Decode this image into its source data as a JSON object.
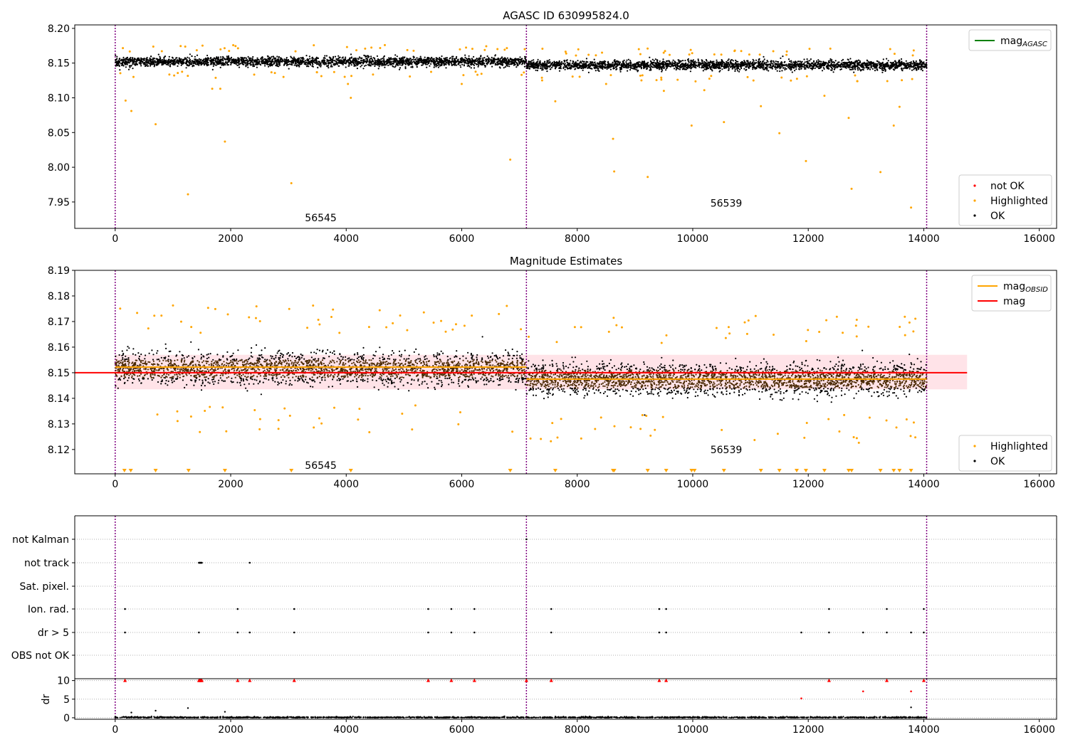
{
  "chart_data": [
    {
      "type": "scatter",
      "title": "AGASC ID 630995824.0",
      "xlim": [
        -700,
        16300
      ],
      "ylim": [
        7.912,
        8.205
      ],
      "x_ticks": [
        0,
        2000,
        4000,
        6000,
        8000,
        10000,
        12000,
        14000,
        16000
      ],
      "x_tick_labels": [
        "0",
        "2000",
        "4000",
        "6000",
        "8000",
        "10000",
        "12000",
        "14000",
        "16000"
      ],
      "y_ticks": [
        7.95,
        8.0,
        8.05,
        8.1,
        8.15,
        8.2
      ],
      "y_tick_labels": [
        "7.95",
        "8.00",
        "8.05",
        "8.10",
        "8.15",
        "8.20"
      ],
      "obsid_boundaries": [
        0,
        7120,
        14050
      ],
      "obsid_labels": [
        {
          "text": "56545",
          "x": 3560,
          "y": 7.922
        },
        {
          "text": "56539",
          "x": 10580,
          "y": 7.943
        }
      ],
      "segments": [
        {
          "x_start": 0,
          "x_end": 7120,
          "mean": 8.152,
          "spread": 0.0075
        },
        {
          "x_start": 7120,
          "x_end": 14050,
          "mean": 8.147,
          "spread": 0.0075
        }
      ],
      "highlighted_points": [
        [
          180,
          8.096
        ],
        [
          280,
          8.081
        ],
        [
          700,
          8.062
        ],
        [
          1260,
          7.961
        ],
        [
          1900,
          8.037
        ],
        [
          3050,
          7.977
        ],
        [
          4080,
          8.1
        ],
        [
          6840,
          8.011
        ],
        [
          7620,
          8.095
        ],
        [
          8620,
          8.041
        ],
        [
          8640,
          7.994
        ],
        [
          9220,
          7.986
        ],
        [
          9980,
          8.06
        ],
        [
          10540,
          8.065
        ],
        [
          11180,
          8.088
        ],
        [
          11500,
          8.049
        ],
        [
          11960,
          8.009
        ],
        [
          12280,
          8.103
        ],
        [
          12700,
          8.071
        ],
        [
          12750,
          7.969
        ],
        [
          13250,
          7.993
        ],
        [
          13480,
          8.06
        ],
        [
          13580,
          8.087
        ],
        [
          13780,
          7.942
        ],
        [
          1680,
          8.113
        ],
        [
          1820,
          8.113
        ],
        [
          4030,
          8.12
        ],
        [
          6000,
          8.12
        ],
        [
          8500,
          8.12
        ],
        [
          9500,
          8.11
        ],
        [
          10200,
          8.111
        ]
      ],
      "series": [
        {
          "name": "not OK",
          "color": "#ff0000",
          "marker": "point"
        },
        {
          "name": "Highlighted",
          "color": "#ffa500",
          "marker": "point"
        },
        {
          "name": "OK",
          "color": "#000000",
          "marker": "point"
        }
      ],
      "legends": [
        {
          "position": "upper-right",
          "entries": [
            {
              "label": "mag",
              "subscript": "AGASC",
              "color": "#008000",
              "kind": "line"
            }
          ]
        },
        {
          "position": "lower-right",
          "entries": [
            {
              "label": "not OK",
              "color": "#ff0000",
              "kind": "point"
            },
            {
              "label": "Highlighted",
              "color": "#ffa500",
              "kind": "point"
            },
            {
              "label": "OK",
              "color": "#000000",
              "kind": "point"
            }
          ]
        }
      ]
    },
    {
      "type": "scatter",
      "title": "Magnitude Estimates",
      "xlim": [
        -700,
        16300
      ],
      "ylim": [
        8.1105,
        8.19
      ],
      "x_ticks": [
        0,
        2000,
        4000,
        6000,
        8000,
        10000,
        12000,
        14000,
        16000
      ],
      "x_tick_labels": [
        "0",
        "2000",
        "4000",
        "6000",
        "8000",
        "10000",
        "12000",
        "14000",
        "16000"
      ],
      "y_ticks": [
        8.12,
        8.13,
        8.14,
        8.15,
        8.16,
        8.17,
        8.18,
        8.19
      ],
      "y_tick_labels": [
        "8.12",
        "8.13",
        "8.14",
        "8.15",
        "8.16",
        "8.17",
        "8.18",
        "8.19"
      ],
      "obsid_boundaries": [
        0,
        7120,
        14050
      ],
      "obsid_labels": [
        {
          "text": "56545",
          "x": 3560,
          "y": 8.1125
        },
        {
          "text": "56539",
          "x": 10580,
          "y": 8.1185
        }
      ],
      "mag_line": {
        "value": 8.15,
        "x_start": -700,
        "x_end": 14750,
        "color": "#ff0000"
      },
      "mag_band": {
        "low": 8.1435,
        "high": 8.157,
        "x_start": 0,
        "x_end": 14750,
        "color": "#ffc0cb"
      },
      "obsid_mag": [
        {
          "x_start": 0,
          "x_end": 7120,
          "value": 8.1522
        },
        {
          "x_start": 7120,
          "x_end": 14050,
          "value": 8.1475
        }
      ],
      "segments": [
        {
          "x_start": 0,
          "x_end": 7120,
          "mean": 8.1515,
          "spread": 0.0065
        },
        {
          "x_start": 7120,
          "x_end": 14050,
          "mean": 8.1475,
          "spread": 0.0065
        }
      ],
      "clipped_markers_x": [
        160,
        270,
        700,
        1270,
        1900,
        3050,
        4080,
        6840,
        7620,
        8620,
        8640,
        9220,
        9540,
        9980,
        10030,
        10540,
        11180,
        11500,
        11800,
        11960,
        12280,
        12700,
        12750,
        13250,
        13480,
        13580,
        13780
      ],
      "series": [
        {
          "name": "Highlighted",
          "color": "#ffa500",
          "marker": "point"
        },
        {
          "name": "OK",
          "color": "#000000",
          "marker": "point"
        }
      ],
      "legends": [
        {
          "position": "upper-right",
          "entries": [
            {
              "label": "mag",
              "subscript": "OBSID",
              "color": "#ffa500",
              "kind": "line"
            },
            {
              "label": "mag",
              "subscript": "",
              "color": "#ff0000",
              "kind": "line"
            }
          ]
        },
        {
          "position": "lower-right",
          "entries": [
            {
              "label": "Highlighted",
              "color": "#ffa500",
              "kind": "point"
            },
            {
              "label": "OK",
              "color": "#000000",
              "kind": "point"
            }
          ]
        }
      ]
    },
    {
      "type": "scatter",
      "title": "",
      "xlim": [
        -700,
        16300
      ],
      "categories": [
        "not Kalman",
        "not track",
        "Sat. pixel.",
        "Ion. rad.",
        "dr > 5",
        "OBS not OK"
      ],
      "flag_points": {
        "not Kalman": [
          7120
        ],
        "not track": [
          1450,
          1460,
          1470,
          1480,
          1490,
          1500,
          2330
        ],
        "Sat. pixel.": [],
        "Ion. rad.": [
          170,
          2120,
          3100,
          5420,
          5820,
          6220,
          7550,
          9420,
          9540,
          12360,
          13360,
          14000
        ],
        "dr > 5": [
          170,
          1450,
          2120,
          2330,
          3100,
          5420,
          5820,
          6220,
          7550,
          9420,
          9540,
          11880,
          12360,
          12950,
          13360,
          13780,
          14000
        ],
        "OBS not OK": []
      },
      "obsid_boundaries": [
        0,
        7120,
        14050
      ]
    },
    {
      "type": "scatter",
      "title": "",
      "ylabel": "dr",
      "xlim": [
        -700,
        16300
      ],
      "ylim": [
        -0.4,
        10.5
      ],
      "x_ticks": [
        0,
        2000,
        4000,
        6000,
        8000,
        10000,
        12000,
        14000,
        16000
      ],
      "x_tick_labels": [
        "0",
        "2000",
        "4000",
        "6000",
        "8000",
        "10000",
        "12000",
        "14000",
        "16000"
      ],
      "y_ticks": [
        0,
        5,
        10
      ],
      "y_tick_labels": [
        "0",
        "5",
        "10"
      ],
      "obsid_boundaries": [
        0,
        7120,
        14050
      ],
      "dr_clip_value": 10,
      "flagged_dr_x": [
        170,
        1450,
        1460,
        1470,
        1480,
        1490,
        1500,
        2120,
        2330,
        3100,
        5420,
        5820,
        6220,
        7120,
        7550,
        9420,
        9540,
        12360,
        13360,
        14000
      ],
      "extra_red_points": [
        [
          11880,
          5.2
        ],
        [
          12950,
          7.1
        ],
        [
          13780,
          7.1
        ]
      ],
      "extra_black_points": [
        [
          280,
          1.4
        ],
        [
          700,
          1.9
        ],
        [
          1260,
          2.6
        ],
        [
          1900,
          1.6
        ],
        [
          13780,
          2.8
        ]
      ]
    }
  ]
}
